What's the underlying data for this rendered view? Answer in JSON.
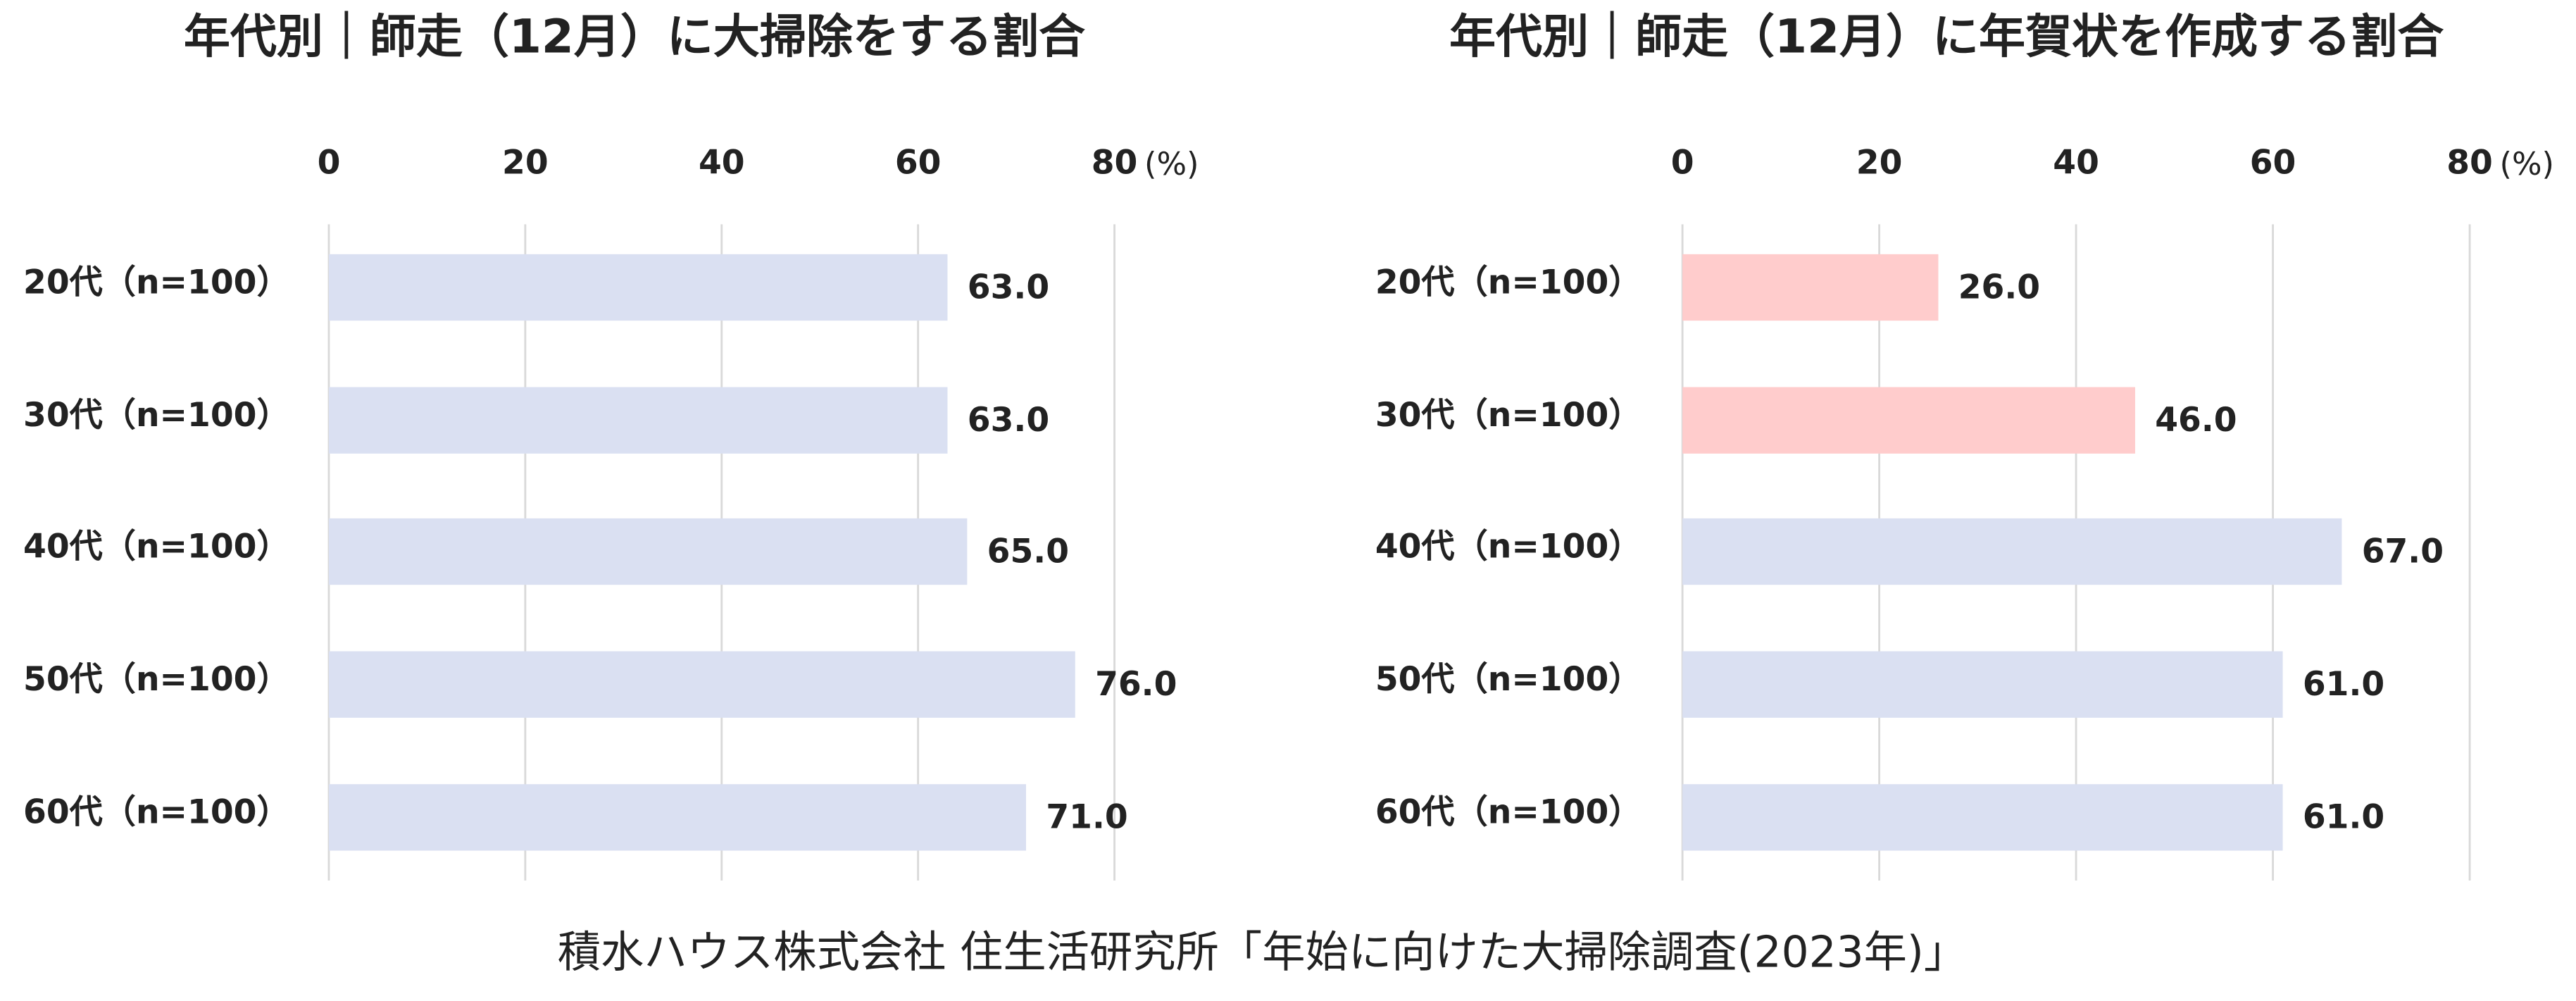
{
  "chart_data": [
    {
      "type": "bar",
      "title": "年代別｜師走（12月）に大掃除をする割合",
      "categories": [
        "20代（n=100）",
        "30代（n=100）",
        "40代（n=100）",
        "50代（n=100）",
        "60代（n=100）"
      ],
      "values": [
        63,
        63,
        65,
        76,
        71
      ],
      "value_labels": [
        "63.0",
        "63.0",
        "65.0",
        "76.0",
        "71.0"
      ],
      "colors": [
        "#dae0f2",
        "#dae0f2",
        "#dae0f2",
        "#dae0f2",
        "#dae0f2"
      ],
      "xlim": [
        0,
        80
      ],
      "xticks": [
        0,
        20,
        40,
        60,
        80
      ],
      "x_unit": "(%)",
      "grid": true
    },
    {
      "type": "bar",
      "title": "年代別｜師走（12月）に年賀状を作成する割合",
      "categories": [
        "20代（n=100）",
        "30代（n=100）",
        "40代（n=100）",
        "50代（n=100）",
        "60代（n=100）"
      ],
      "values": [
        26,
        46,
        67,
        61,
        61
      ],
      "value_labels": [
        "26.0",
        "46.0",
        "67.0",
        "61.0",
        "61.0"
      ],
      "colors": [
        "#ffcccc",
        "#ffcccc",
        "#dae0f2",
        "#dae0f2",
        "#dae0f2"
      ],
      "xlim": [
        0,
        80
      ],
      "xticks": [
        0,
        20,
        40,
        60,
        80
      ],
      "x_unit": "(%)",
      "grid": true
    }
  ],
  "source": "積水ハウス株式会社 住生活研究所「年始に向けた大掃除調査(2023年)」"
}
